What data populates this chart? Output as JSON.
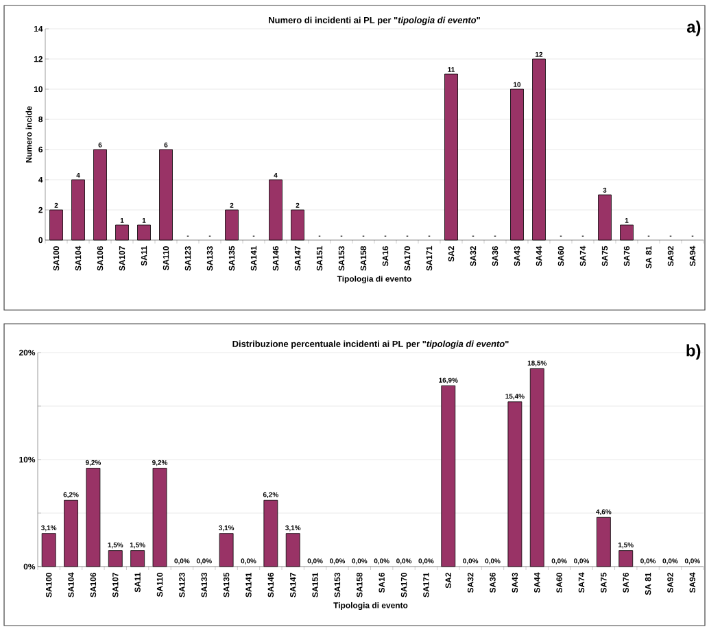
{
  "chart_data": [
    {
      "type": "bar",
      "title": "Numero di incidenti ai PL per \"*tipologia di evento*\"",
      "xlabel": "Tipologia di evento",
      "ylabel": "Numero incide",
      "categories": [
        "SA100",
        "SA104",
        "SA106",
        "SA107",
        "SA11",
        "SA110",
        "SA123",
        "SA133",
        "SA135",
        "SA141",
        "SA146",
        "SA147",
        "SA151",
        "SA153",
        "SA158",
        "SA16",
        "SA170",
        "SA171",
        "SA2",
        "SA32",
        "SA36",
        "SA43",
        "SA44",
        "SA60",
        "SA74",
        "SA75",
        "SA76",
        "SA 81",
        "SA92",
        "SA94"
      ],
      "values": [
        2,
        4,
        6,
        1,
        1,
        6,
        0,
        0,
        2,
        0,
        4,
        2,
        0,
        0,
        0,
        0,
        0,
        0,
        11,
        0,
        0,
        10,
        12,
        0,
        0,
        3,
        1,
        0,
        0,
        0
      ],
      "value_labels": [
        "2",
        "4",
        "6",
        "1",
        "1",
        "6",
        "-",
        "-",
        "2",
        "-",
        "4",
        "2",
        "-",
        "-",
        "-",
        "-",
        "-",
        "-",
        "11",
        "-",
        "-",
        "10",
        "12",
        "-",
        "-",
        "3",
        "1",
        "-",
        "-",
        "-"
      ],
      "color": "#993366",
      "ylim": [
        0,
        14
      ],
      "yticks": [
        0,
        2,
        4,
        6,
        8,
        10,
        12,
        14
      ],
      "grid": "y",
      "annotations": [
        "a)"
      ]
    },
    {
      "type": "bar",
      "title": "Distribuzione percentuale incidenti ai PL per \"*tipologia di evento*\"",
      "xlabel": "Tipologia di evento",
      "categories": [
        "SA100",
        "SA104",
        "SA106",
        "SA107",
        "SA11",
        "SA110",
        "SA123",
        "SA133",
        "SA135",
        "SA141",
        "SA146",
        "SA147",
        "SA151",
        "SA153",
        "SA158",
        "SA16",
        "SA170",
        "SA171",
        "SA2",
        "SA32",
        "SA36",
        "SA43",
        "SA44",
        "SA60",
        "SA74",
        "SA75",
        "SA76",
        "SA 81",
        "SA92",
        "SA94"
      ],
      "values": [
        3.1,
        6.2,
        9.2,
        1.5,
        1.5,
        9.2,
        0,
        0,
        3.1,
        0,
        6.2,
        3.1,
        0,
        0,
        0,
        0,
        0,
        0,
        16.9,
        0,
        0,
        15.4,
        18.5,
        0,
        0,
        4.6,
        1.5,
        0,
        0,
        0
      ],
      "value_labels": [
        "3,1%",
        "6,2%",
        "9,2%",
        "1,5%",
        "1,5%",
        "9,2%",
        "0,0%",
        "0,0%",
        "3,1%",
        "0,0%",
        "6,2%",
        "3,1%",
        "0,0%",
        "0,0%",
        "0,0%",
        "0,0%",
        "0,0%",
        "0,0%",
        "16,9%",
        "0,0%",
        "0,0%",
        "15,4%",
        "18,5%",
        "0,0%",
        "0,0%",
        "4,6%",
        "1,5%",
        "0,0%",
        "0,0%",
        "0,0%"
      ],
      "color": "#993366",
      "ylim": [
        0,
        20
      ],
      "yticks": [
        {
          "value": 0,
          "label": "0%"
        },
        {
          "value": 5,
          "label": null
        },
        {
          "value": 10,
          "label": "10%"
        },
        {
          "value": 15,
          "label": null
        },
        {
          "value": 20,
          "label": "20%"
        }
      ],
      "grid": "y",
      "annotations": [
        "b)"
      ]
    }
  ]
}
